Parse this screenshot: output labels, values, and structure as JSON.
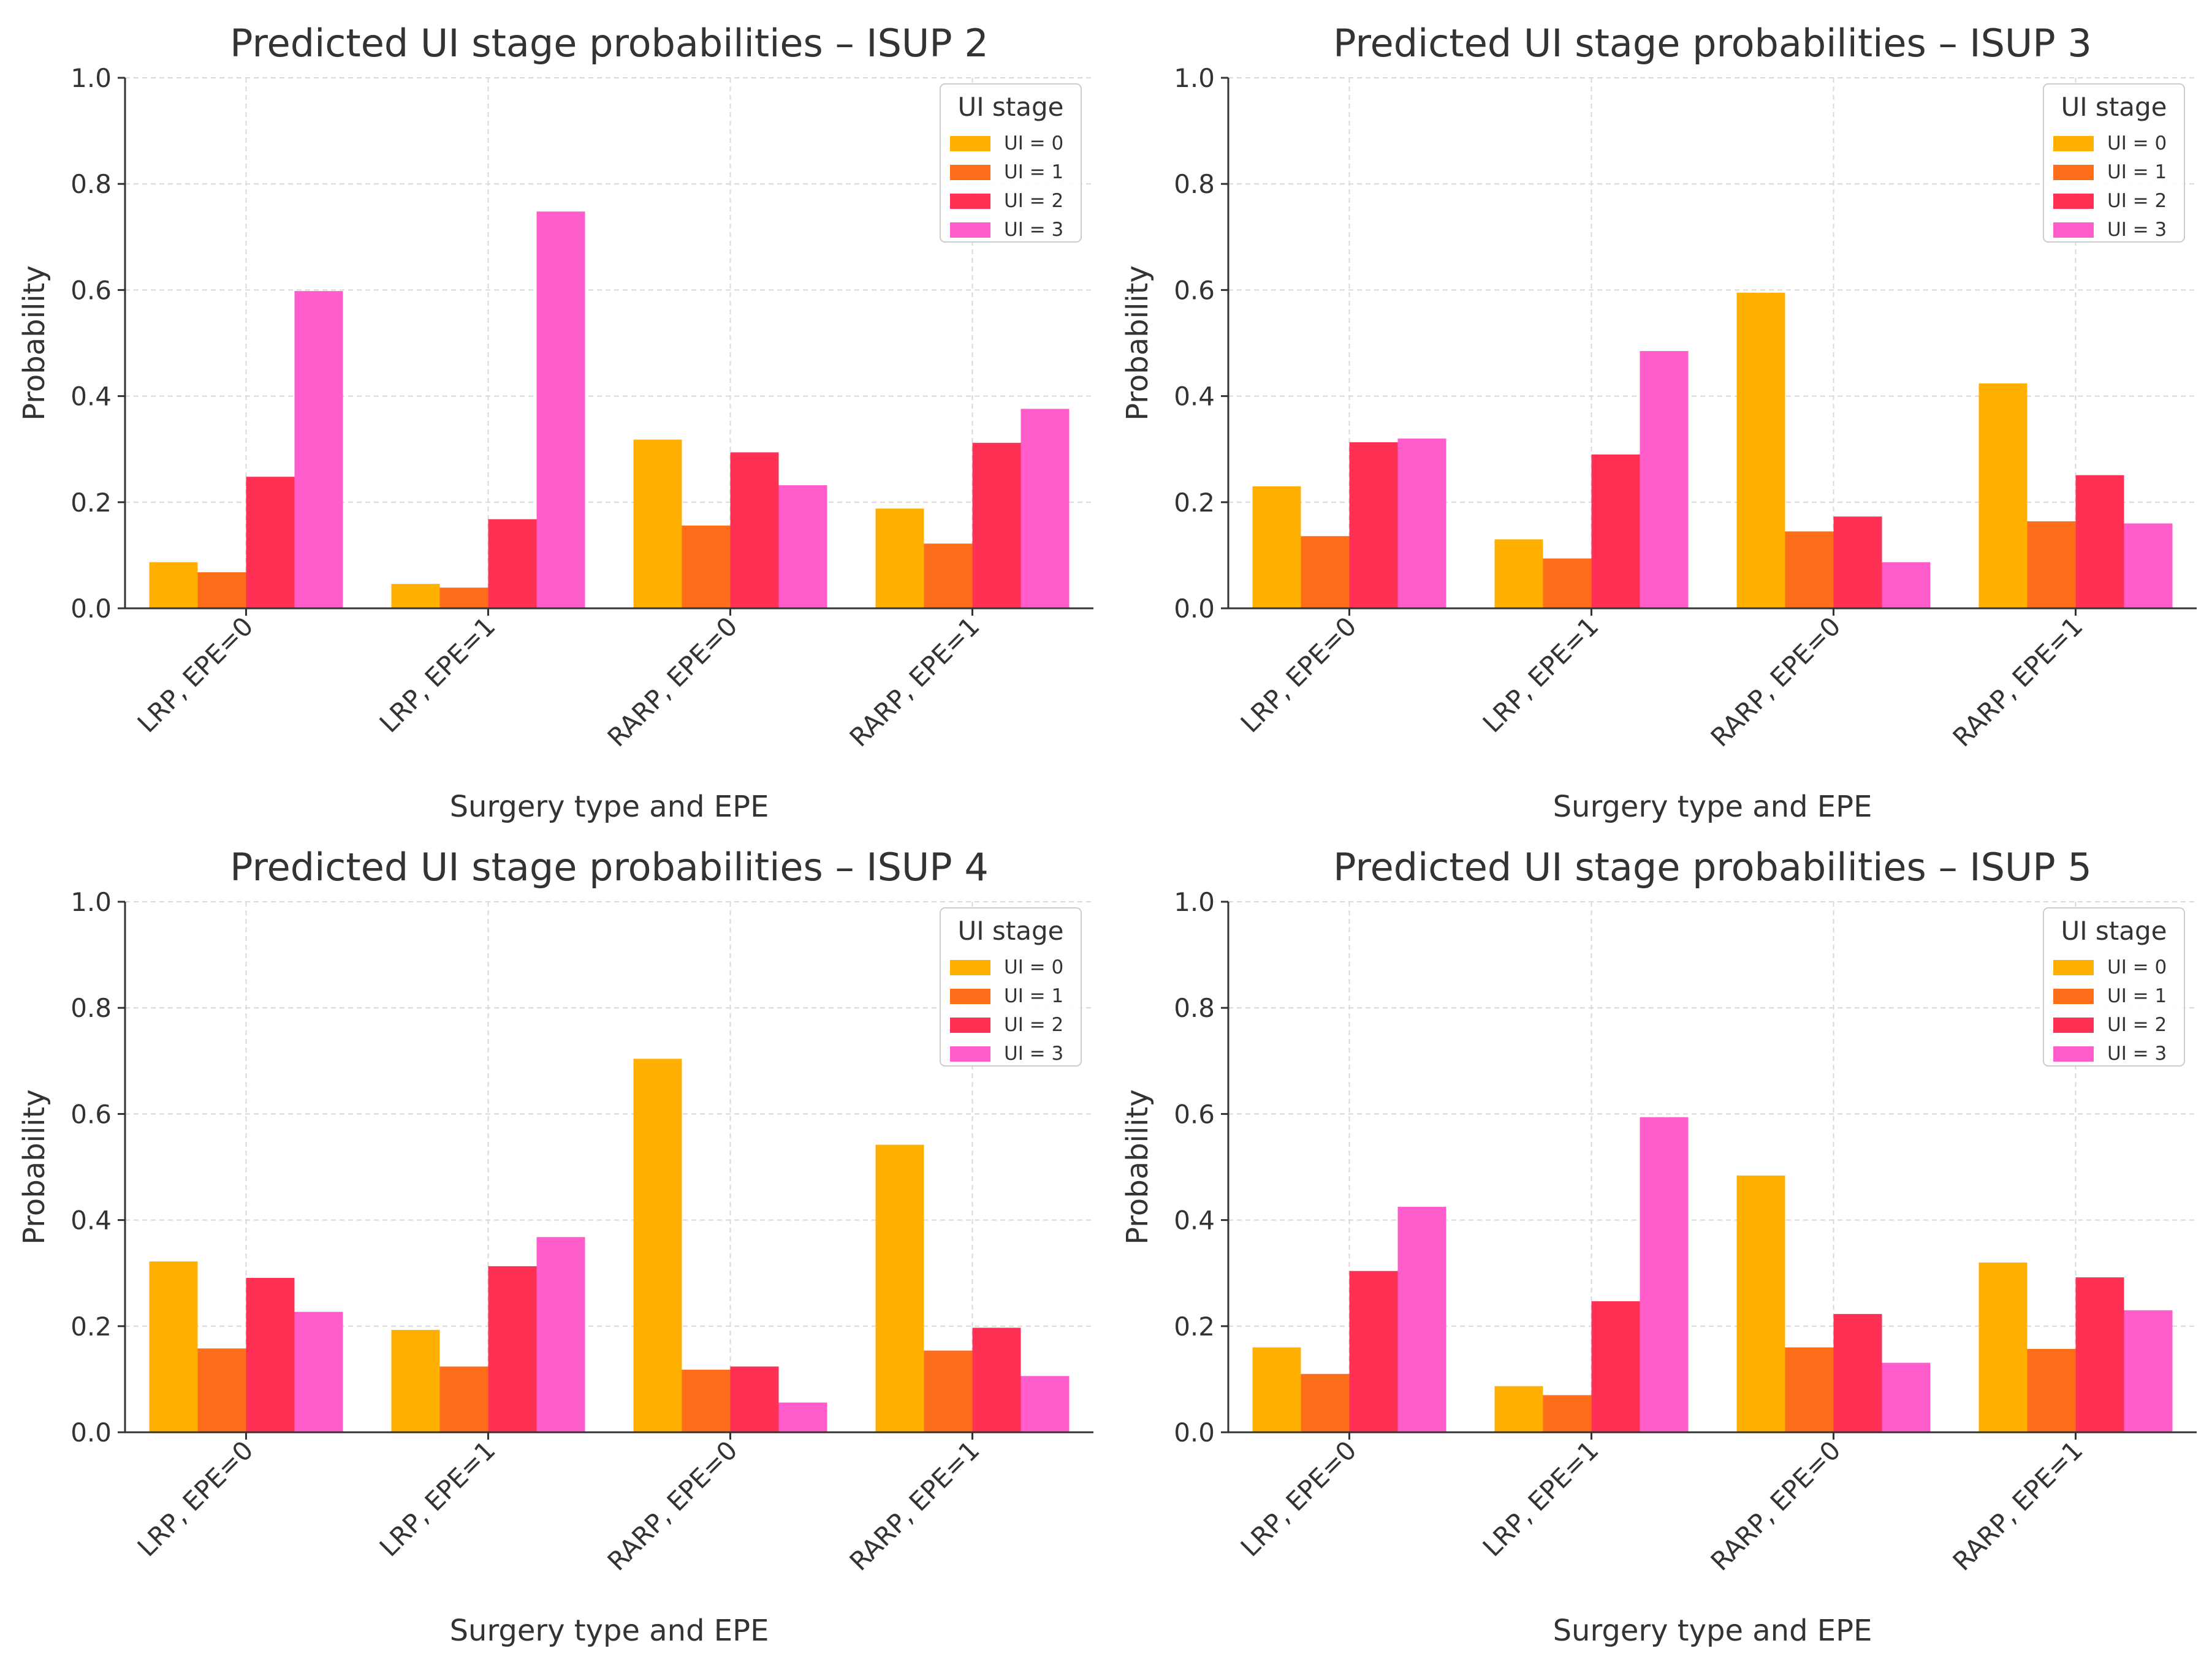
{
  "chart_data": [
    {
      "type": "bar",
      "title": "Predicted UI stage probabilities – ISUP 2",
      "xlabel": "Surgery type and EPE",
      "ylabel": "Probability",
      "ylim": [
        0,
        1.0
      ],
      "yticks": [
        "0.0",
        "0.2",
        "0.4",
        "0.6",
        "0.8",
        "1.0"
      ],
      "categories": [
        "LRP, EPE=0",
        "LRP, EPE=1",
        "RARP, EPE=0",
        "RARP, EPE=1"
      ],
      "legend_title": "UI stage",
      "legend_position": "top-right",
      "grid": true,
      "series": [
        {
          "name": "UI = 0",
          "color": "#FFB000",
          "values": [
            0.087,
            0.046,
            0.318,
            0.188
          ]
        },
        {
          "name": "UI = 1",
          "color": "#FE6E1A",
          "values": [
            0.068,
            0.039,
            0.156,
            0.122
          ]
        },
        {
          "name": "UI = 2",
          "color": "#FE3054",
          "values": [
            0.248,
            0.168,
            0.294,
            0.312
          ]
        },
        {
          "name": "UI = 3",
          "color": "#FF5CCC",
          "values": [
            0.598,
            0.748,
            0.232,
            0.376
          ]
        }
      ]
    },
    {
      "type": "bar",
      "title": "Predicted UI stage probabilities – ISUP 3",
      "xlabel": "Surgery type and EPE",
      "ylabel": "Probability",
      "ylim": [
        0,
        1.0
      ],
      "yticks": [
        "0.0",
        "0.2",
        "0.4",
        "0.6",
        "0.8",
        "1.0"
      ],
      "categories": [
        "LRP, EPE=0",
        "LRP, EPE=1",
        "RARP, EPE=0",
        "RARP, EPE=1"
      ],
      "legend_title": "UI stage",
      "legend_position": "top-right",
      "grid": true,
      "series": [
        {
          "name": "UI = 0",
          "color": "#FFB000",
          "values": [
            0.23,
            0.13,
            0.595,
            0.424
          ]
        },
        {
          "name": "UI = 1",
          "color": "#FE6E1A",
          "values": [
            0.136,
            0.094,
            0.145,
            0.164
          ]
        },
        {
          "name": "UI = 2",
          "color": "#FE3054",
          "values": [
            0.313,
            0.29,
            0.173,
            0.251
          ]
        },
        {
          "name": "UI = 3",
          "color": "#FF5CCC",
          "values": [
            0.32,
            0.485,
            0.087,
            0.16
          ]
        }
      ]
    },
    {
      "type": "bar",
      "title": "Predicted UI stage probabilities – ISUP 4",
      "xlabel": "Surgery type and EPE",
      "ylabel": "Probability",
      "ylim": [
        0,
        1.0
      ],
      "yticks": [
        "0.0",
        "0.2",
        "0.4",
        "0.6",
        "0.8",
        "1.0"
      ],
      "categories": [
        "LRP, EPE=0",
        "LRP, EPE=1",
        "RARP, EPE=0",
        "RARP, EPE=1"
      ],
      "legend_title": "UI stage",
      "legend_position": "top-right",
      "grid": true,
      "series": [
        {
          "name": "UI = 0",
          "color": "#FFB000",
          "values": [
            0.322,
            0.193,
            0.704,
            0.542
          ]
        },
        {
          "name": "UI = 1",
          "color": "#FE6E1A",
          "values": [
            0.158,
            0.124,
            0.118,
            0.154
          ]
        },
        {
          "name": "UI = 2",
          "color": "#FE3054",
          "values": [
            0.291,
            0.313,
            0.124,
            0.197
          ]
        },
        {
          "name": "UI = 3",
          "color": "#FF5CCC",
          "values": [
            0.227,
            0.368,
            0.056,
            0.106
          ]
        }
      ]
    },
    {
      "type": "bar",
      "title": "Predicted UI stage probabilities – ISUP 5",
      "xlabel": "Surgery type and EPE",
      "ylabel": "Probability",
      "ylim": [
        0,
        1.0
      ],
      "yticks": [
        "0.0",
        "0.2",
        "0.4",
        "0.6",
        "0.8",
        "1.0"
      ],
      "categories": [
        "LRP, EPE=0",
        "LRP, EPE=1",
        "RARP, EPE=0",
        "RARP, EPE=1"
      ],
      "legend_title": "UI stage",
      "legend_position": "top-right",
      "grid": true,
      "series": [
        {
          "name": "UI = 0",
          "color": "#FFB000",
          "values": [
            0.16,
            0.087,
            0.484,
            0.32
          ]
        },
        {
          "name": "UI = 1",
          "color": "#FE6E1A",
          "values": [
            0.11,
            0.07,
            0.16,
            0.157
          ]
        },
        {
          "name": "UI = 2",
          "color": "#FE3054",
          "values": [
            0.304,
            0.247,
            0.223,
            0.292
          ]
        },
        {
          "name": "UI = 3",
          "color": "#FF5CCC",
          "values": [
            0.425,
            0.594,
            0.131,
            0.23
          ]
        }
      ]
    }
  ]
}
